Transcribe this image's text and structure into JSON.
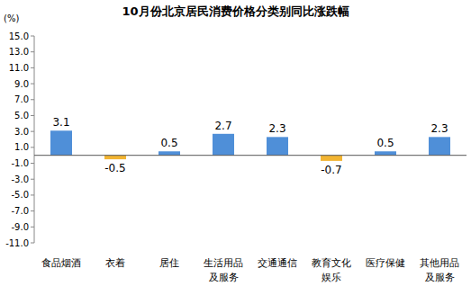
{
  "chart_data": {
    "type": "bar",
    "title": "10月份北京居民消费价格分类别同比涨跌幅",
    "y_label": "(%)",
    "categories": [
      "食品烟酒",
      "衣着",
      "居住",
      "生活用品及服务",
      "交通通信",
      "教育文化娱乐",
      "医疗保健",
      "其他用品及服务"
    ],
    "values": [
      3.1,
      -0.5,
      0.5,
      2.7,
      2.3,
      -0.7,
      0.5,
      2.3
    ],
    "colors": [
      "#4f8fd8",
      "#f2b431",
      "#4f8fd8",
      "#4f8fd8",
      "#4f8fd8",
      "#f2b431",
      "#4f8fd8",
      "#4f8fd8"
    ],
    "ylim": [
      -11,
      15
    ],
    "yticks": [
      {
        "value": -11,
        "label": "-11.0"
      },
      {
        "value": -9,
        "label": "-9.0"
      },
      {
        "value": -7,
        "label": "-7.0"
      },
      {
        "value": -5,
        "label": "-5.0"
      },
      {
        "value": -3,
        "label": "-3.0"
      },
      {
        "value": -1,
        "label": "-1.0"
      },
      {
        "value": 1,
        "label": "1.0"
      },
      {
        "value": 3,
        "label": "3.0"
      },
      {
        "value": 5,
        "label": "5.0"
      },
      {
        "value": 7,
        "label": "7.0"
      },
      {
        "value": 9,
        "label": "9.0"
      },
      {
        "value": 11,
        "label": "11.0"
      },
      {
        "value": 13,
        "label": "13.0"
      },
      {
        "value": 15,
        "label": "15.0"
      }
    ],
    "grid": false,
    "data_labels": true
  }
}
